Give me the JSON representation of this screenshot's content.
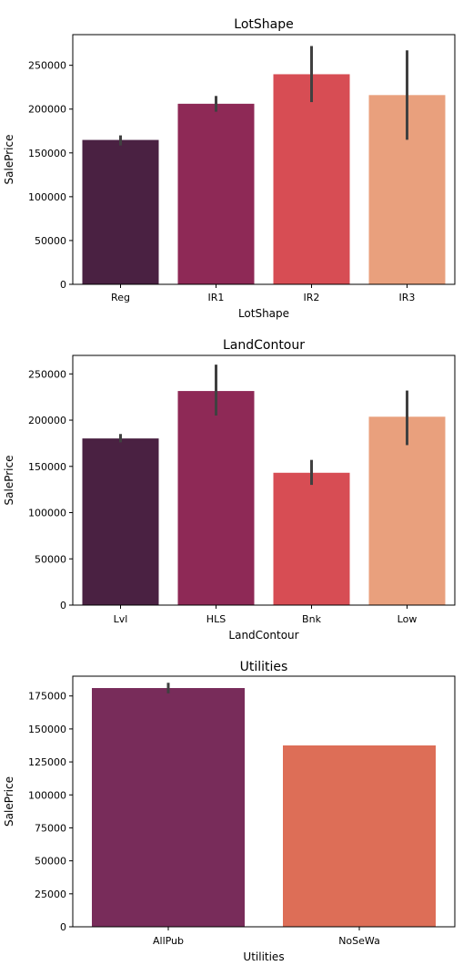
{
  "chart_data": [
    {
      "type": "bar",
      "title": "LotShape",
      "xlabel": "LotShape",
      "ylabel": "SalePrice",
      "categories": [
        "Reg",
        "IR1",
        "IR2",
        "IR3"
      ],
      "values": [
        164800,
        206100,
        239800,
        216000
      ],
      "error_low": [
        158500,
        197000,
        208000,
        165000
      ],
      "error_high": [
        170000,
        215000,
        272000,
        267000
      ],
      "colors": [
        "#4a2142",
        "#8e2956",
        "#d74d54",
        "#e9a07d"
      ],
      "ylim": [
        0,
        285000
      ],
      "yticks": [
        0,
        50000,
        100000,
        150000,
        200000,
        250000
      ],
      "ytick_labels": [
        "0",
        "50000",
        "100000",
        "150000",
        "200000",
        "250000"
      ],
      "grid": false
    },
    {
      "type": "bar",
      "title": "LandContour",
      "xlabel": "LandContour",
      "ylabel": "SalePrice",
      "categories": [
        "Lvl",
        "HLS",
        "Bnk",
        "Low"
      ],
      "values": [
        180200,
        231500,
        143100,
        203700
      ],
      "error_low": [
        176000,
        205000,
        130000,
        173000
      ],
      "error_high": [
        185000,
        260000,
        157000,
        232000
      ],
      "colors": [
        "#4a2142",
        "#8e2956",
        "#d74d54",
        "#e9a07d"
      ],
      "ylim": [
        0,
        270000
      ],
      "yticks": [
        0,
        50000,
        100000,
        150000,
        200000,
        250000
      ],
      "ytick_labels": [
        "0",
        "50000",
        "100000",
        "150000",
        "200000",
        "250000"
      ],
      "grid": false
    },
    {
      "type": "bar",
      "title": "Utilities",
      "xlabel": "Utilities",
      "ylabel": "SalePrice",
      "categories": [
        "AllPub",
        "NoSeWa"
      ],
      "values": [
        181000,
        137500
      ],
      "error_low": [
        177000,
        null
      ],
      "error_high": [
        185000,
        null
      ],
      "colors": [
        "#782c5a",
        "#dd6e57"
      ],
      "ylim": [
        0,
        190000
      ],
      "yticks": [
        0,
        25000,
        50000,
        75000,
        100000,
        125000,
        150000,
        175000
      ],
      "ytick_labels": [
        "0",
        "25000",
        "50000",
        "75000",
        "100000",
        "125000",
        "150000",
        "175000"
      ],
      "grid": false
    }
  ]
}
